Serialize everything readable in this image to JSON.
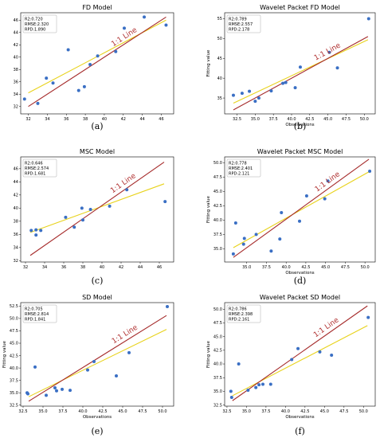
{
  "chart_data": [
    {
      "type": "scatter",
      "panel": "(a)",
      "title": "FD   Model",
      "xlabel": "",
      "ylabel": "",
      "xlim": [
        31.2,
        47.3
      ],
      "ylim": [
        30.8,
        47.2
      ],
      "xticks": [
        32,
        34,
        36,
        38,
        40,
        42,
        44,
        46
      ],
      "yticks": [
        32,
        34,
        36,
        38,
        40,
        42,
        44,
        46
      ],
      "stats": [
        "R2:0.720",
        "RMSE:2.320",
        "RPD:1.890"
      ],
      "ref_line_label": "1:1 Line",
      "ref_line": [
        [
          32,
          32
        ],
        [
          46.5,
          46.5
        ]
      ],
      "fit_line": [
        [
          32,
          34.2
        ],
        [
          46.5,
          46.0
        ]
      ],
      "point_color": "#3a6fc4",
      "ref_color": "#a52a2a",
      "fit_color": "#e8d21a",
      "x": [
        31.6,
        33.0,
        33.9,
        34.6,
        36.2,
        37.3,
        37.9,
        38.5,
        39.3,
        41.2,
        42.1,
        44.2,
        46.5
      ],
      "y": [
        33.2,
        32.5,
        36.6,
        35.8,
        41.2,
        34.6,
        35.2,
        38.8,
        40.2,
        40.9,
        44.7,
        46.5,
        45.2
      ]
    },
    {
      "type": "scatter",
      "panel": "(b)",
      "title": "Wavelet Packet FD   Model",
      "xlabel": "Observations",
      "ylabel": "Fitting value",
      "xlim": [
        30.8,
        51.5
      ],
      "ylim": [
        31.0,
        56.5
      ],
      "xticks": [
        32.5,
        35.0,
        37.5,
        40.0,
        42.5,
        45.0,
        47.5,
        50.0
      ],
      "xtick_labels": [
        "32.5",
        "35.0",
        "37.5",
        "40.0",
        "42.5",
        "45.0",
        "47.5",
        "50.0"
      ],
      "yticks": [
        35,
        40,
        45,
        50,
        55
      ],
      "stats": [
        "R2:0.789",
        "RMSE:2.557",
        "RPD:2.178"
      ],
      "ref_line_label": "1:1 Line",
      "ref_line": [
        [
          32,
          32
        ],
        [
          50.5,
          50.5
        ]
      ],
      "fit_line": [
        [
          32,
          33.7
        ],
        [
          50.5,
          49.7
        ]
      ],
      "point_color": "#3a6fc4",
      "ref_color": "#a52a2a",
      "fit_color": "#e8d21a",
      "x": [
        32.0,
        33.2,
        34.2,
        35.0,
        35.5,
        37.2,
        38.8,
        39.2,
        40.5,
        41.2,
        45.2,
        46.3,
        50.6
      ],
      "y": [
        35.7,
        36.2,
        36.7,
        34.2,
        35.0,
        36.8,
        38.7,
        38.9,
        37.6,
        42.8,
        46.5,
        42.6,
        55.0
      ]
    },
    {
      "type": "scatter",
      "panel": "(c)",
      "title": "MSC Model",
      "xlabel": "",
      "ylabel": "",
      "xlim": [
        31.5,
        47.5
      ],
      "ylim": [
        31.8,
        47.8
      ],
      "xticks": [
        32,
        34,
        36,
        38,
        40,
        42,
        44,
        46
      ],
      "yticks": [
        32,
        34,
        36,
        38,
        40,
        42,
        44,
        46
      ],
      "stats": [
        "R2:0.646",
        "RMSE:2.574",
        "RPD:1.681"
      ],
      "ref_line_label": "1:1 Line",
      "ref_line": [
        [
          32.5,
          32.8
        ],
        [
          46.5,
          47.0
        ]
      ],
      "fit_line": [
        [
          32.5,
          36.3
        ],
        [
          46.5,
          43.7
        ]
      ],
      "point_color": "#3a6fc4",
      "ref_color": "#a52a2a",
      "fit_color": "#e8d21a",
      "x": [
        32.6,
        33.1,
        33.6,
        36.2,
        37.1,
        37.9,
        38.0,
        38.8,
        40.8,
        42.6,
        46.6,
        33.1
      ],
      "y": [
        36.6,
        35.9,
        36.6,
        38.6,
        37.1,
        40.0,
        38.2,
        39.8,
        40.3,
        42.8,
        41.0,
        36.7
      ]
    },
    {
      "type": "scatter",
      "panel": "(d)",
      "title": "Wavelet Packet MSC Model",
      "xlabel": "Observations",
      "ylabel": "Fitting value",
      "xlim": [
        32.2,
        51.3
      ],
      "ylim": [
        32.7,
        51.0
      ],
      "xticks": [
        35.0,
        37.5,
        40.0,
        42.5,
        45.0,
        47.5,
        50.0
      ],
      "xtick_labels": [
        "35.0",
        "37.5",
        "40.0",
        "42.5",
        "45.0",
        "47.5",
        "50.0"
      ],
      "yticks": [
        35.0,
        37.5,
        40.0,
        42.5,
        45.0,
        47.5,
        50.0
      ],
      "ytick_labels": [
        "35.0",
        "37.5",
        "40.0",
        "42.5",
        "45.0",
        "47.5",
        "50.0"
      ],
      "stats": [
        "R2:0.778",
        "RMSE:2.401",
        "RPD:2.121"
      ],
      "ref_line_label": "1:1 Line",
      "ref_line": [
        [
          33.3,
          33.5
        ],
        [
          50.5,
          50.6
        ]
      ],
      "fit_line": [
        [
          33.3,
          35.2
        ],
        [
          50.5,
          48.4
        ]
      ],
      "point_color": "#3a6fc4",
      "ref_color": "#a52a2a",
      "fit_color": "#e8d21a",
      "x": [
        33.3,
        33.6,
        34.6,
        34.7,
        36.2,
        38.1,
        39.2,
        39.4,
        41.7,
        42.6,
        44.9,
        45.3,
        50.6
      ],
      "y": [
        34.1,
        39.5,
        35.8,
        36.8,
        37.5,
        34.6,
        36.7,
        41.3,
        39.8,
        44.2,
        43.7,
        46.8,
        48.5
      ]
    },
    {
      "type": "scatter",
      "panel": "(e)",
      "title": "SD Model",
      "xlabel": "Observations",
      "ylabel": "Fitting value",
      "xlim": [
        32.2,
        51.4
      ],
      "ylim": [
        32.3,
        53.2
      ],
      "xticks": [
        32.5,
        35.0,
        37.5,
        40.0,
        42.5,
        45.0,
        47.5,
        50.0
      ],
      "xtick_labels": [
        "32.5",
        "35.0",
        "37.5",
        "40.0",
        "42.5",
        "45.0",
        "47.5",
        "50.0"
      ],
      "yticks": [
        32.5,
        35.0,
        37.5,
        40.0,
        42.5,
        45.0,
        47.5,
        50.0,
        52.5
      ],
      "ytick_labels": [
        "32.5",
        "35.0",
        "37.5",
        "40.0",
        "42.5",
        "45.0",
        "47.5",
        "50.0",
        "52.5"
      ],
      "stats": [
        "R2:0.705",
        "RMSE:2.814",
        "RPD:1.841"
      ],
      "ref_line_label": "1:1 Line",
      "ref_line": [
        [
          33.2,
          33.3
        ],
        [
          50.5,
          50.6
        ]
      ],
      "fit_line": [
        [
          33.2,
          34.2
        ],
        [
          50.5,
          47.8
        ]
      ],
      "point_color": "#3a6fc4",
      "ref_color": "#a52a2a",
      "fit_color": "#e8d21a",
      "x": [
        33.0,
        33.1,
        34.0,
        35.4,
        36.5,
        36.7,
        37.4,
        38.4,
        40.6,
        41.4,
        44.2,
        45.8,
        50.6
      ],
      "y": [
        35.0,
        34.8,
        40.2,
        34.5,
        36.0,
        35.4,
        35.7,
        35.5,
        39.6,
        41.3,
        38.4,
        43.1,
        52.4
      ]
    },
    {
      "type": "scatter",
      "panel": "(f)",
      "title": "Wavelet Packet SD  Model",
      "xlabel": "Observations",
      "ylabel": "Fitting value",
      "xlim": [
        32.2,
        51.5
      ],
      "ylim": [
        32.3,
        51.2
      ],
      "xticks": [
        32.5,
        35.0,
        37.5,
        40.0,
        42.5,
        45.0,
        47.5,
        50.0
      ],
      "xtick_labels": [
        "32.5",
        "35.0",
        "37.5",
        "40.0",
        "42.5",
        "45.0",
        "47.5",
        "50.0"
      ],
      "yticks": [
        32.5,
        35.0,
        37.5,
        40.0,
        42.5,
        45.0,
        47.5,
        50.0
      ],
      "ytick_labels": [
        "32.5",
        "35.0",
        "37.5",
        "40.0",
        "42.5",
        "45.0",
        "47.5",
        "50.0"
      ],
      "stats": [
        "R2:0.786",
        "RMSE:2.398",
        "RPD:2.161"
      ],
      "ref_line_label": "1:1 Line",
      "ref_line": [
        [
          33.2,
          33.3
        ],
        [
          50.5,
          50.6
        ]
      ],
      "fit_line": [
        [
          33.2,
          34.2
        ],
        [
          50.5,
          47.0
        ]
      ],
      "point_color": "#3a6fc4",
      "ref_color": "#a52a2a",
      "fit_color": "#e8d21a",
      "x": [
        33.0,
        33.1,
        34.0,
        35.2,
        36.2,
        36.6,
        37.1,
        38.1,
        40.8,
        41.6,
        44.4,
        45.9,
        50.6
      ],
      "y": [
        35.0,
        33.9,
        40.0,
        35.2,
        35.7,
        36.2,
        36.3,
        36.3,
        40.8,
        42.8,
        42.2,
        41.6,
        48.5
      ]
    }
  ]
}
